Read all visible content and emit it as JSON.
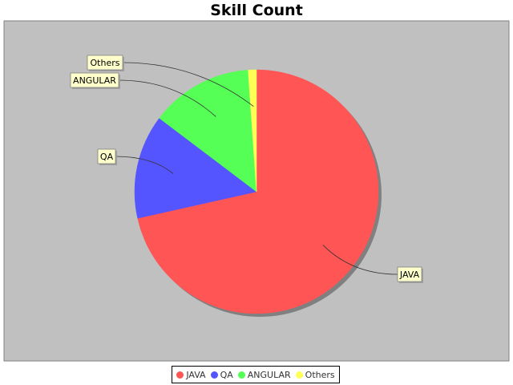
{
  "chart_data": {
    "type": "pie",
    "title": "Skill Count",
    "categories": [
      "JAVA",
      "QA",
      "ANGULAR",
      "Others"
    ],
    "values": [
      71.5,
      13.8,
      13.6,
      1.1
    ],
    "colors": [
      "#ff5555",
      "#5555ff",
      "#55ff55",
      "#ffff55"
    ],
    "start_angle_deg": 90,
    "direction": "clockwise",
    "legend_position": "bottom",
    "plot_background": "#c0c0c0",
    "label_background": "#ffffcc"
  }
}
